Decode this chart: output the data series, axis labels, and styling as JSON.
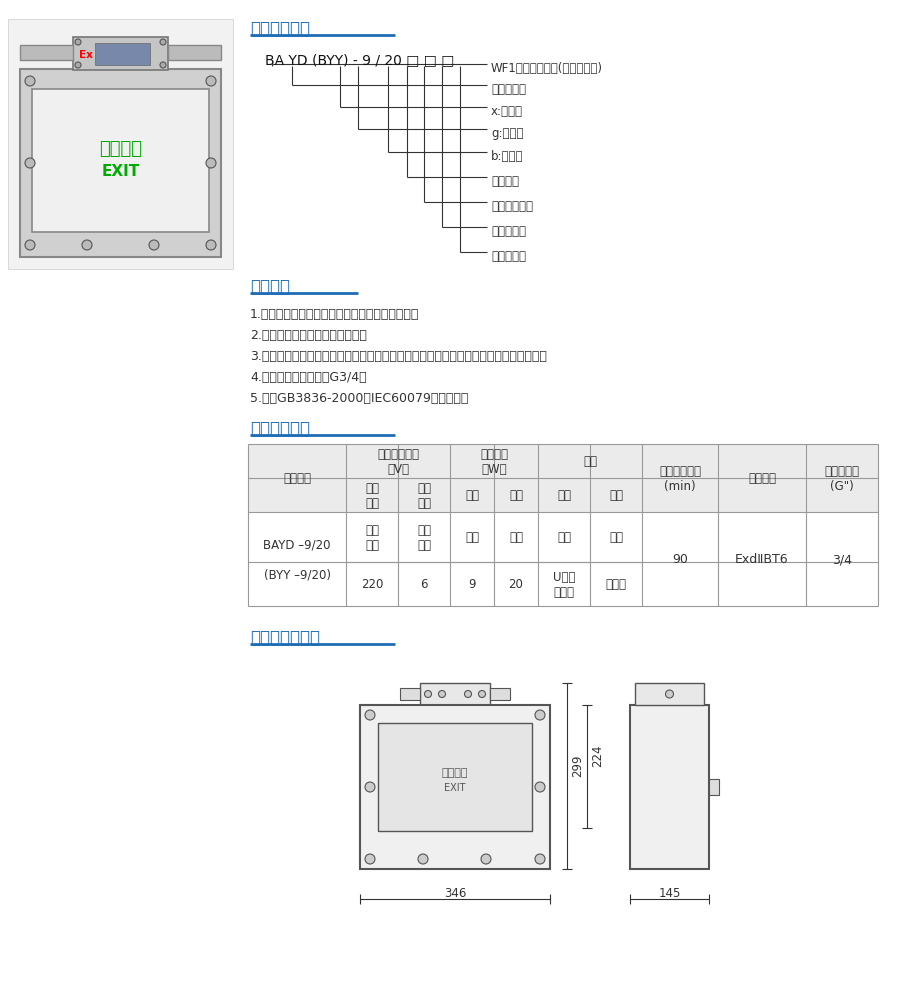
{
  "bg_color": "#ffffff",
  "section1_title": "型号及其含义",
  "model_code": "BA YD (BYY) - 9 / 20 □ □ □",
  "model_labels_ordered": [
    "WF1：户外防中腑(不要求不注)",
    "标志牌代号",
    "x:吸顶式",
    "g:吸杆式",
    "b:吸壁式",
    "应急功率",
    "正常照明功率",
    "诱导标志灯",
    "防爆其它类"
  ],
  "section2_title": "产品特点",
  "features": [
    "1.外壳采用铝合金压铸成型，表面高压静电喷塑。",
    "2.透明标志牌可由用户自由选配。",
    "3.内装免维护镁镁电池组，在正常供电下自动充电，事故断电或停电时应急灯自动点亮。",
    "4.锂管或电缆布线均可G3/4。",
    "5.符合GB3836-2000，IEC60079标准要求。"
  ],
  "section3_title": "主要技术参数",
  "section4_title": "外型及安装尺寸",
  "dim_width": "346",
  "dim_height": "299",
  "dim_inner": "224",
  "dim_side": "145",
  "header_color": "#1f6eb5",
  "table_bg": "#ebebeb",
  "text_color": "#333333"
}
